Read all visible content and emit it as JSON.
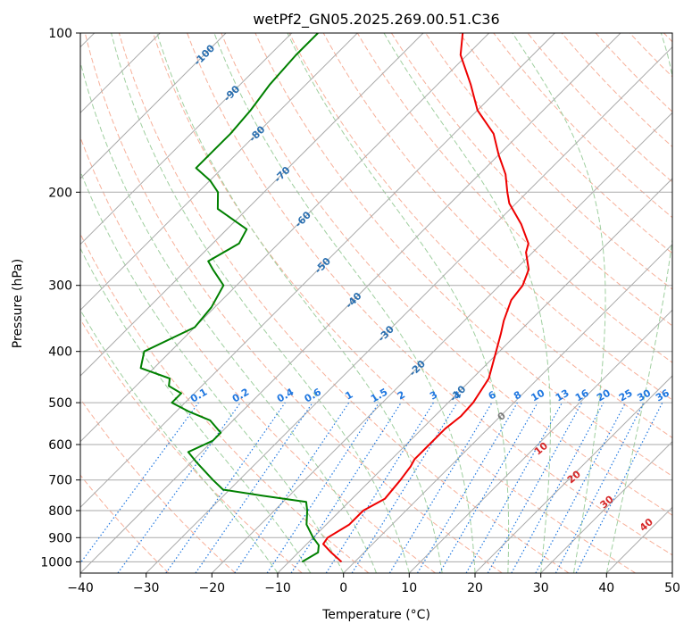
{
  "colors": {
    "temperature": "#ee0000",
    "dewpoint": "#008000",
    "isotherm": "#aaaaaa",
    "dry_adiabat": "#f7b09a",
    "moist_adiabat": "#9fcf9f",
    "mixing_ratio": "#1f77e0",
    "isotherm_label": "#2a6fb0",
    "dry_label_zero": "#7a7a7a",
    "dry_label_warm": "#d62728"
  },
  "chart_data": {
    "type": "line",
    "title": "wetPf2_GN05.2025.269.00.51.C36",
    "xlabel": "Temperature (°C)",
    "ylabel": "Pressure (hPa)",
    "xlim": [
      -40,
      50
    ],
    "ylim": [
      1050,
      100
    ],
    "y_scale": "log",
    "grid": true,
    "x_ticks": [
      -40,
      -30,
      -20,
      -10,
      0,
      10,
      20,
      30,
      40,
      50
    ],
    "x_tick_labels": [
      "−40",
      "−30",
      "−20",
      "−10",
      "0",
      "10",
      "20",
      "30",
      "40",
      "50"
    ],
    "y_ticks": [
      100,
      200,
      300,
      400,
      500,
      600,
      700,
      800,
      900,
      1000
    ],
    "y_tick_labels": [
      "100",
      "200",
      "300",
      "400",
      "500",
      "600",
      "700",
      "800",
      "900",
      "1000"
    ],
    "skew_degrees": 45,
    "series": [
      {
        "key": "temperature",
        "pressure": [
          1000,
          960,
          925,
          900,
          850,
          800,
          760,
          700,
          660,
          640,
          600,
          560,
          530,
          500,
          450,
          400,
          370,
          350,
          320,
          300,
          280,
          260,
          250,
          230,
          210,
          200,
          185,
          170,
          155,
          140,
          125,
          110,
          100
        ],
        "values": [
          -2,
          -5,
          -7.5,
          -7.8,
          -6.5,
          -6.5,
          -5,
          -5.5,
          -6,
          -6.5,
          -6.5,
          -6.5,
          -6,
          -6.2,
          -7.5,
          -10.5,
          -12.5,
          -14,
          -16,
          -16.5,
          -18,
          -21,
          -22,
          -26,
          -31,
          -33,
          -36,
          -40,
          -44,
          -50,
          -55,
          -61,
          -64
        ]
      },
      {
        "key": "dewpoint",
        "pressure": [
          1000,
          960,
          930,
          900,
          850,
          800,
          790,
          770,
          750,
          730,
          700,
          650,
          620,
          590,
          570,
          540,
          520,
          500,
          480,
          465,
          450,
          430,
          400,
          360,
          330,
          300,
          280,
          270,
          250,
          235,
          215,
          200,
          190,
          180,
          165,
          155,
          140,
          125,
          110,
          100
        ],
        "values": [
          -8,
          -7,
          -8,
          -10,
          -13,
          -15,
          -15.5,
          -16.5,
          -24,
          -31,
          -34,
          -39,
          -42,
          -40,
          -40,
          -43.5,
          -48,
          -52,
          -52,
          -55,
          -56,
          -62,
          -64,
          -60,
          -60.5,
          -62,
          -66,
          -68,
          -66,
          -67,
          -74.5,
          -77,
          -80,
          -84,
          -84,
          -84,
          -84.5,
          -85.5,
          -86,
          -86
        ]
      }
    ],
    "isotherm_labels": [
      "-100",
      "-90",
      "-80",
      "-70",
      "-60",
      "-50",
      "-40",
      "-30",
      "-20",
      "-10"
    ],
    "dry_adiabat_labels": [
      "0",
      "10",
      "20",
      "30",
      "40"
    ],
    "mixing_ratio_labels": [
      "0.1",
      "0.2",
      "0.4",
      "0.6",
      "1",
      "1.5",
      "2",
      "3",
      "4",
      "6",
      "8",
      "10",
      "13",
      "16",
      "20",
      "25",
      "30",
      "36"
    ]
  }
}
